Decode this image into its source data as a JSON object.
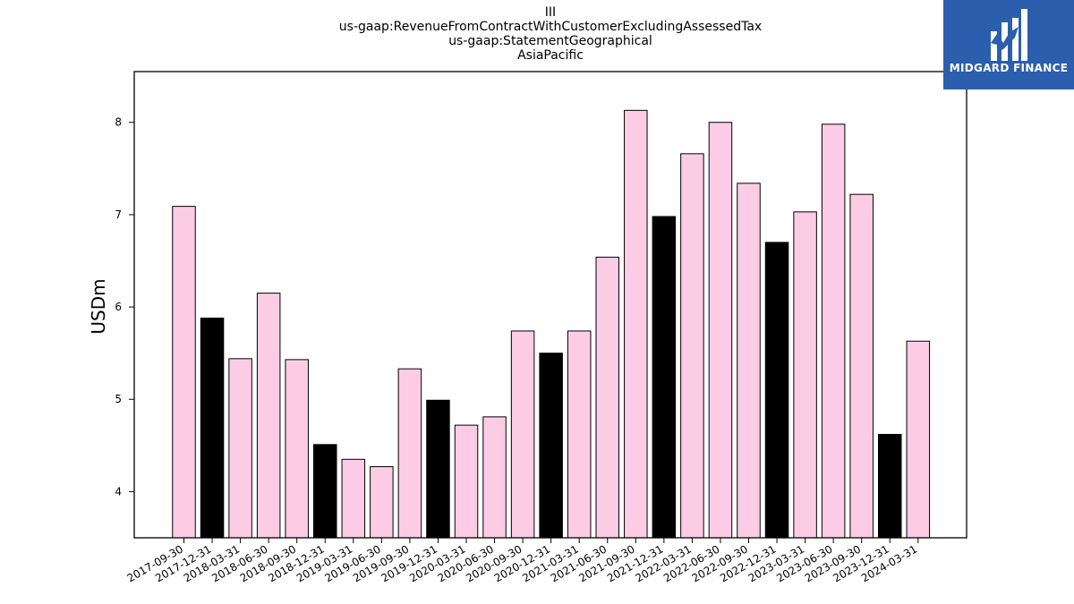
{
  "title_lines": [
    "III",
    "us-gaap:RevenueFromContractWithCustomerExcludingAssessedTax",
    "us-gaap:StatementGeographical",
    "AsiaPacific"
  ],
  "logo": {
    "text": "MIDGARD FINANCE",
    "background": "#2b5fae"
  },
  "colors": {
    "regular_bar": "#fccce4",
    "highlight_bar": "#000000",
    "bar_edge": "#000000"
  },
  "chart_data": {
    "type": "bar",
    "title": "III\nus-gaap:RevenueFromContractWithCustomerExcludingAssessedTax\nus-gaap:StatementGeographical\nAsiaPacific",
    "xlabel": "",
    "ylabel": "USDm",
    "ylim": [
      3.5,
      8.55
    ],
    "yticks": [
      4,
      5,
      6,
      7,
      8
    ],
    "grid": false,
    "categories": [
      "2017-09-30",
      "2017-12-31",
      "2018-03-31",
      "2018-06-30",
      "2018-09-30",
      "2018-12-31",
      "2019-03-31",
      "2019-06-30",
      "2019-09-30",
      "2019-12-31",
      "2020-03-31",
      "2020-06-30",
      "2020-09-30",
      "2020-12-31",
      "2021-03-31",
      "2021-06-30",
      "2021-09-30",
      "2021-12-31",
      "2022-03-31",
      "2022-06-30",
      "2022-09-30",
      "2022-12-31",
      "2023-03-31",
      "2023-06-30",
      "2023-09-30",
      "2023-12-31",
      "2024-03-31"
    ],
    "values": [
      7.09,
      5.88,
      5.44,
      6.15,
      5.43,
      4.51,
      4.35,
      4.27,
      5.33,
      4.99,
      4.72,
      4.81,
      5.74,
      5.5,
      5.74,
      6.54,
      8.13,
      6.98,
      7.66,
      8.0,
      7.34,
      6.7,
      7.03,
      7.98,
      7.22,
      4.62,
      5.63
    ],
    "highlight": [
      false,
      true,
      false,
      false,
      false,
      true,
      false,
      false,
      false,
      true,
      false,
      false,
      false,
      true,
      false,
      false,
      false,
      true,
      false,
      false,
      false,
      true,
      false,
      false,
      false,
      true,
      false
    ]
  }
}
